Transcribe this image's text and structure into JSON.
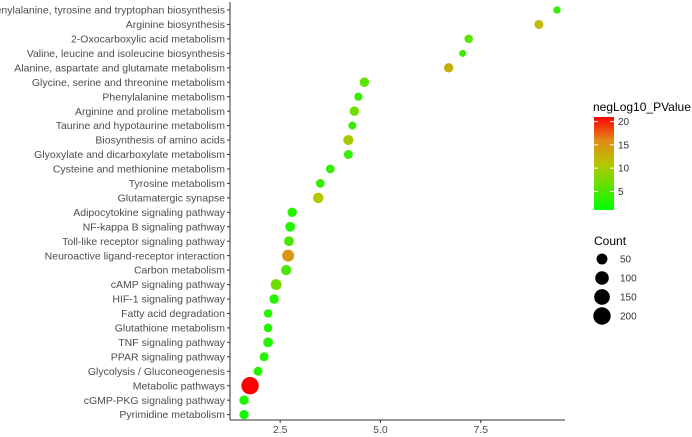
{
  "chart_data": {
    "type": "scatter",
    "title": "",
    "xlabel": "",
    "ylabel": "",
    "xlim": [
      1.25,
      9.6
    ],
    "x_ticks": [
      2.5,
      5.0,
      7.5
    ],
    "x_tick_labels": [
      "2.5",
      "5.0",
      "7.5"
    ],
    "grid": false,
    "categories": [
      "Phenylalanine, tyrosine and tryptophan biosynthesis",
      "Arginine biosynthesis",
      "2-Oxocarboxylic acid metabolism",
      "Valine, leucine and isoleucine biosynthesis",
      "Alanine, aspartate and glutamate metabolism",
      "Glycine, serine and threonine metabolism",
      "Phenylalanine metabolism",
      "Arginine and proline metabolism",
      "Taurine and hypotaurine metabolism",
      "Biosynthesis of amino acids",
      "Glyoxylate and dicarboxylate metabolism",
      "Cysteine and methionine metabolism",
      "Tyrosine metabolism",
      "Glutamatergic synapse",
      "Adipocytokine signaling pathway",
      "NF-kappa B signaling pathway",
      "Toll-like receptor signaling pathway",
      "Neuroactive ligand-receptor interaction",
      "Carbon metabolism",
      "cAMP signaling pathway",
      "HIF-1 signaling pathway",
      "Fatty acid degradation",
      "Glutathione metabolism",
      "TNF signaling pathway",
      "PPAR signaling pathway",
      "Glycolysis / Gluconeogenesis",
      "Metabolic pathways",
      "cGMP-PKG signaling pathway",
      "Pyrimidine metabolism"
    ],
    "x": [
      9.4,
      8.95,
      7.2,
      7.05,
      6.7,
      4.6,
      4.45,
      4.35,
      4.3,
      4.2,
      4.2,
      3.75,
      3.5,
      3.45,
      2.8,
      2.75,
      2.72,
      2.7,
      2.65,
      2.4,
      2.35,
      2.2,
      2.2,
      2.2,
      2.1,
      1.95,
      1.75,
      1.6,
      1.6
    ],
    "count": [
      10,
      25,
      20,
      8,
      30,
      30,
      17,
      30,
      15,
      40,
      25,
      22,
      22,
      45,
      30,
      35,
      35,
      70,
      40,
      50,
      30,
      20,
      22,
      35,
      25,
      25,
      200,
      30,
      28
    ],
    "neglog10_pvalue": [
      4,
      12,
      6,
      4,
      13,
      6,
      4,
      7,
      4,
      10,
      4,
      4,
      4,
      11,
      3,
      3,
      5,
      15,
      5,
      7,
      3,
      3,
      3,
      3,
      3,
      3,
      21,
      2.5,
      2
    ],
    "color_legend": {
      "title": "negLog10_PValue",
      "ticks": [
        5,
        10,
        15,
        20
      ],
      "range": [
        1,
        21
      ],
      "low_color": "#00ff00",
      "high_color": "#ff0000"
    },
    "size_legend": {
      "title": "Count",
      "values": [
        50,
        100,
        150,
        200
      ],
      "labels": [
        "50",
        "100",
        "150",
        "200"
      ]
    },
    "legend_placement": "right"
  }
}
